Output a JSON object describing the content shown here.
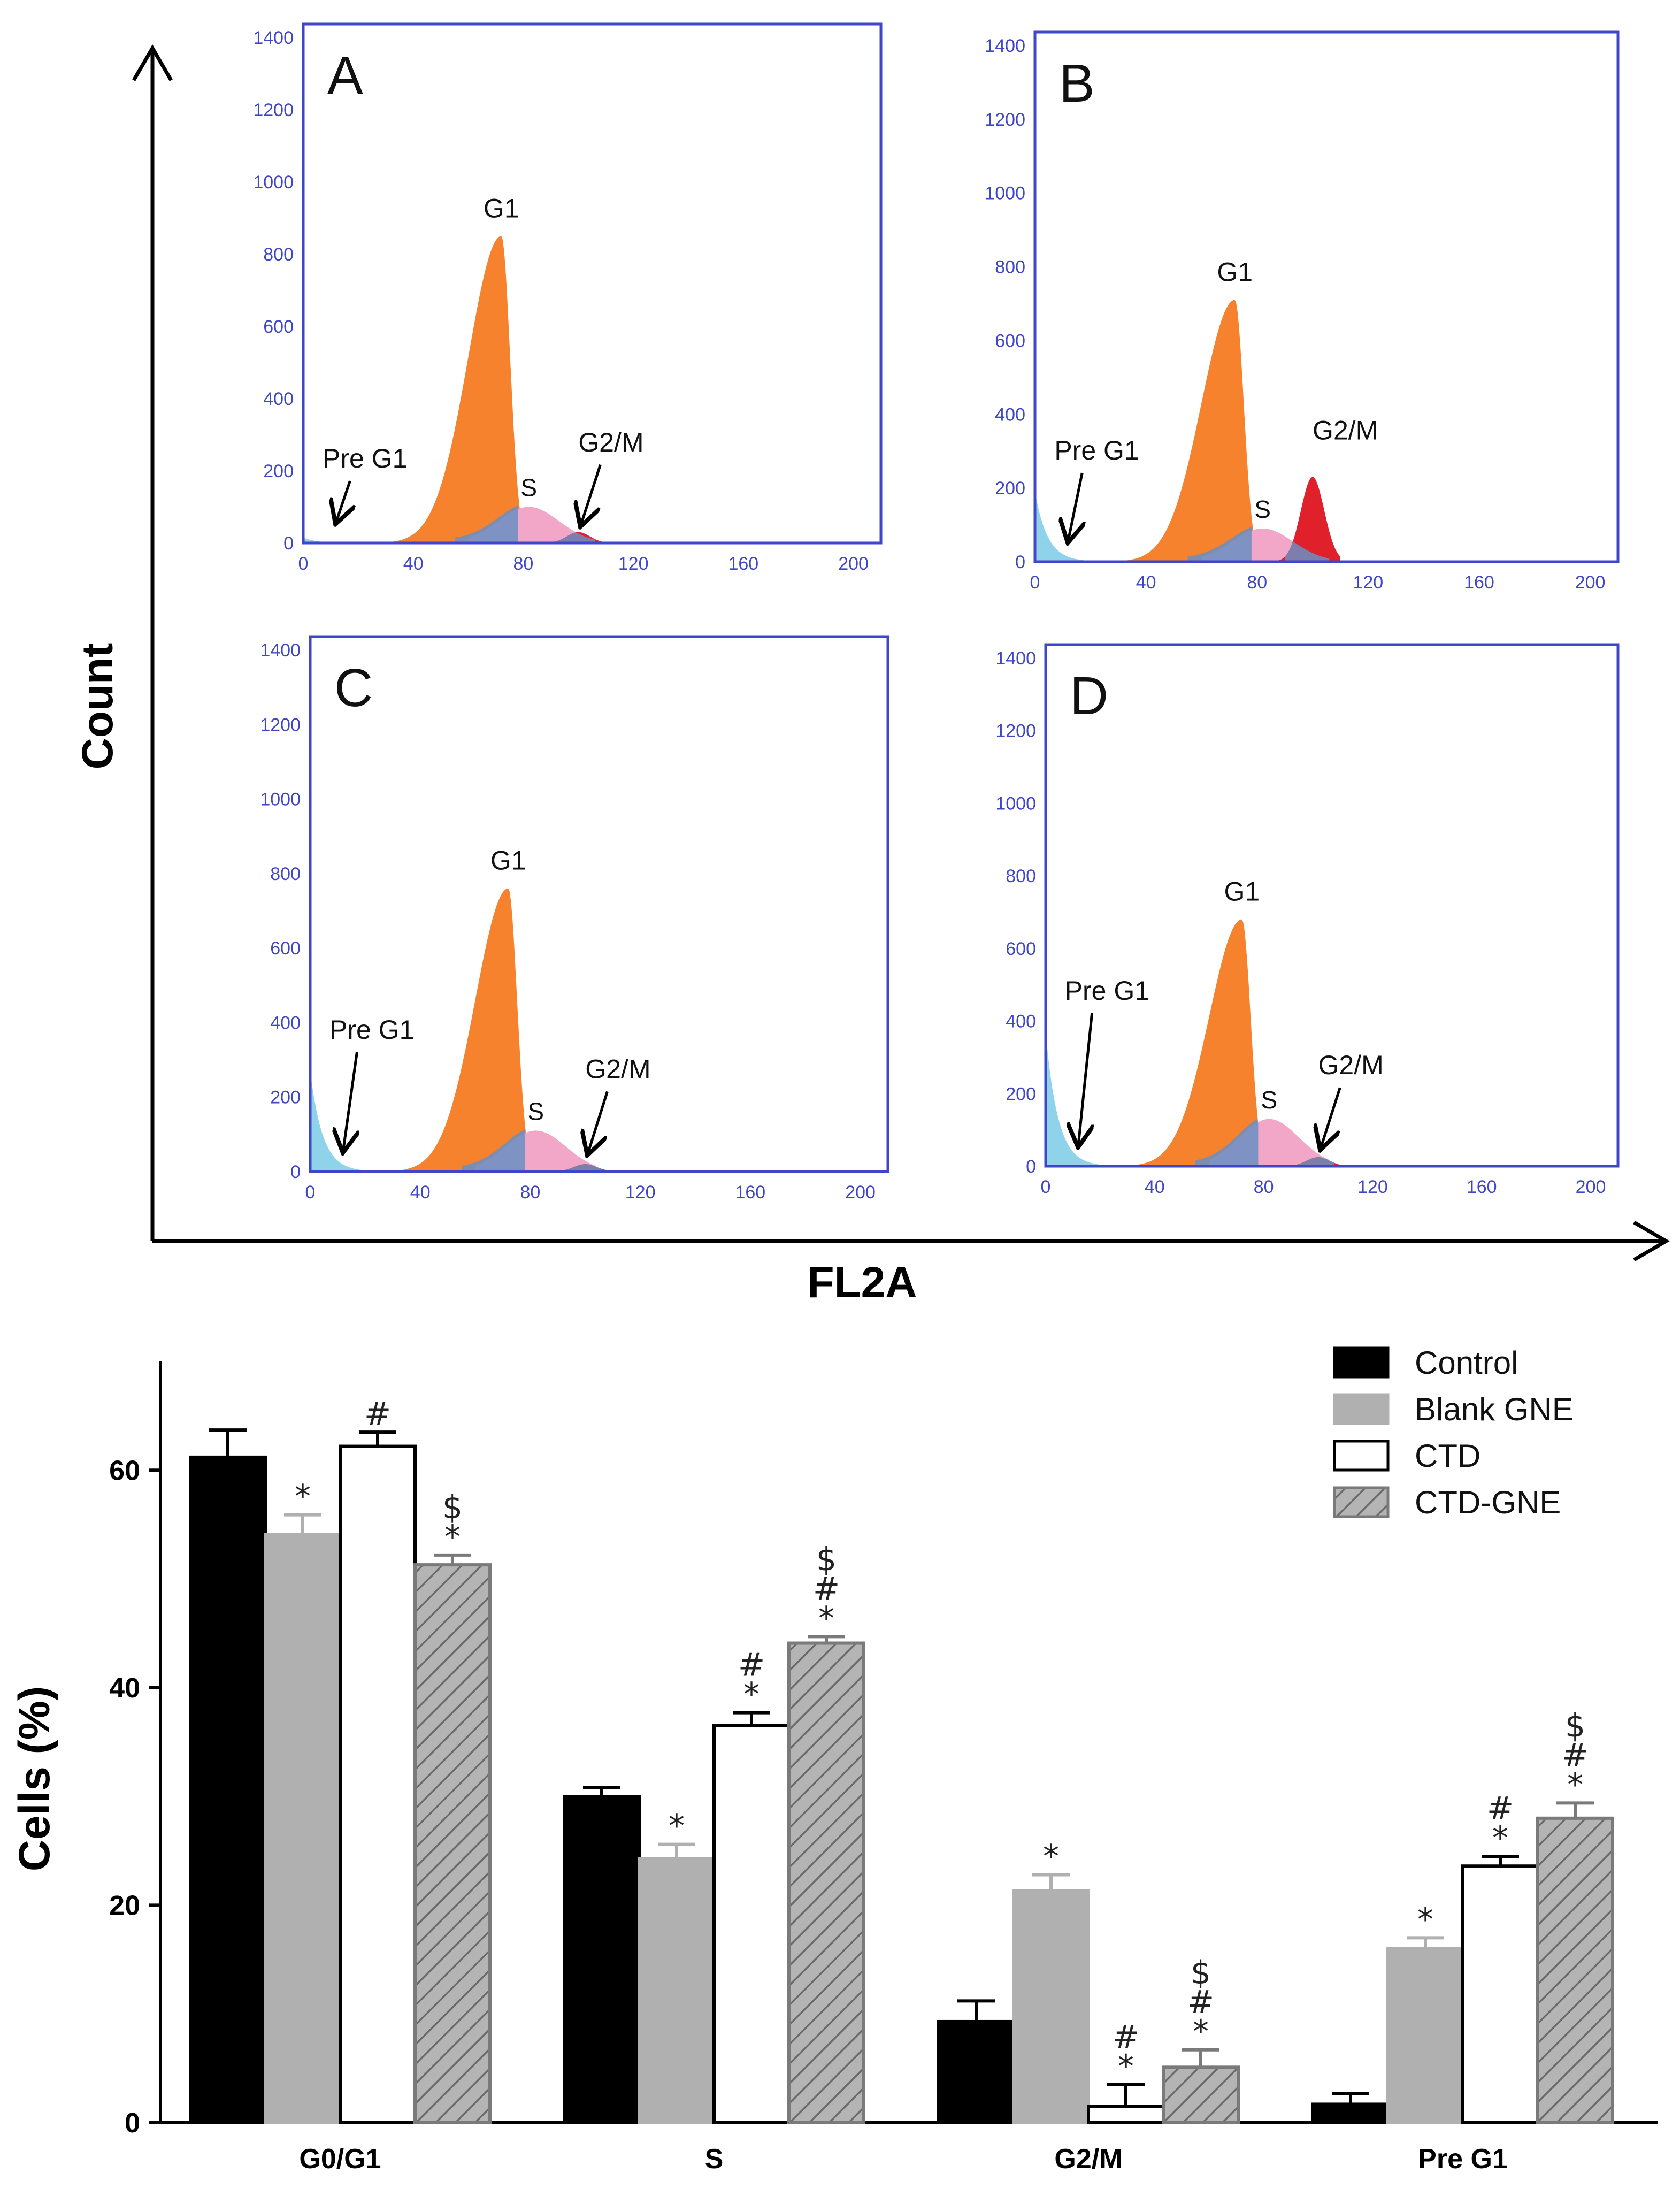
{
  "colors": {
    "pre_g1": "#8fd3ea",
    "g1": "#f6822d",
    "s_phase": "#f2a7c8",
    "g2m": "#e0212c",
    "overlap": "#6a8ec2",
    "panel_border": "#3f46c8",
    "tick_text": "#3f46c8",
    "control": "#000000",
    "blank_gne": "#b0b0b0",
    "ctd": "#ffffff",
    "ctd_gne": "#b4b4b4"
  },
  "flow": {
    "x_axis_title": "FL2A",
    "y_axis_title": "Count",
    "x_ticks": [
      "0",
      "40",
      "80",
      "120",
      "160",
      "200"
    ],
    "y_ticks": [
      "0",
      "200",
      "400",
      "600",
      "800",
      "1000",
      "1200",
      "1400"
    ],
    "x_range": [
      0,
      210
    ],
    "y_range": [
      0,
      1400
    ],
    "phase_labels": {
      "pre_g1": "Pre G1",
      "g1": "G1",
      "s": "S",
      "g2m": "G2/M"
    },
    "panels": [
      {
        "letter": "A",
        "pre_g1_peak": 15,
        "g1_peak": 850,
        "s_peak": 100,
        "g2m_peak": 30
      },
      {
        "letter": "B",
        "pre_g1_peak": 190,
        "g1_peak": 710,
        "s_peak": 90,
        "g2m_peak": 230
      },
      {
        "letter": "C",
        "pre_g1_peak": 270,
        "g1_peak": 760,
        "s_peak": 110,
        "g2m_peak": 20
      },
      {
        "letter": "D",
        "pre_g1_peak": 370,
        "g1_peak": 680,
        "s_peak": 130,
        "g2m_peak": 25
      }
    ]
  },
  "chart_data": {
    "type": "bar",
    "ylabel": "Cells (%)",
    "xlabel": "",
    "ylim": [
      0,
      70
    ],
    "y_ticks": [
      "0",
      "20",
      "40",
      "60"
    ],
    "categories": [
      "G0/G1",
      "S",
      "G2/M",
      "Pre G1"
    ],
    "legend_position": "top-right",
    "series": [
      {
        "name": "Control",
        "values": [
          61.2,
          30.0,
          9.3,
          1.7
        ],
        "errors": [
          2.5,
          0.8,
          1.9,
          1.0
        ],
        "annotations": [
          "",
          "",
          "",
          ""
        ]
      },
      {
        "name": "Blank GNE",
        "values": [
          54.1,
          24.3,
          21.3,
          16.0
        ],
        "errors": [
          1.8,
          1.3,
          1.5,
          1.0
        ],
        "annotations": [
          "*",
          "*",
          "*",
          "*"
        ]
      },
      {
        "name": "CTD",
        "values": [
          62.2,
          36.5,
          1.5,
          23.6
        ],
        "errors": [
          1.3,
          1.2,
          2.0,
          0.9
        ],
        "annotations": [
          "#",
          "*\n#",
          "*\n#",
          "*\n#"
        ]
      },
      {
        "name": "CTD-GNE",
        "values": [
          51.3,
          44.1,
          5.1,
          28.0
        ],
        "errors": [
          0.9,
          0.6,
          1.6,
          1.4
        ],
        "annotations": [
          "*\n$",
          "*\n#\n$",
          "*\n#\n$",
          "*\n#\n$"
        ]
      }
    ]
  }
}
